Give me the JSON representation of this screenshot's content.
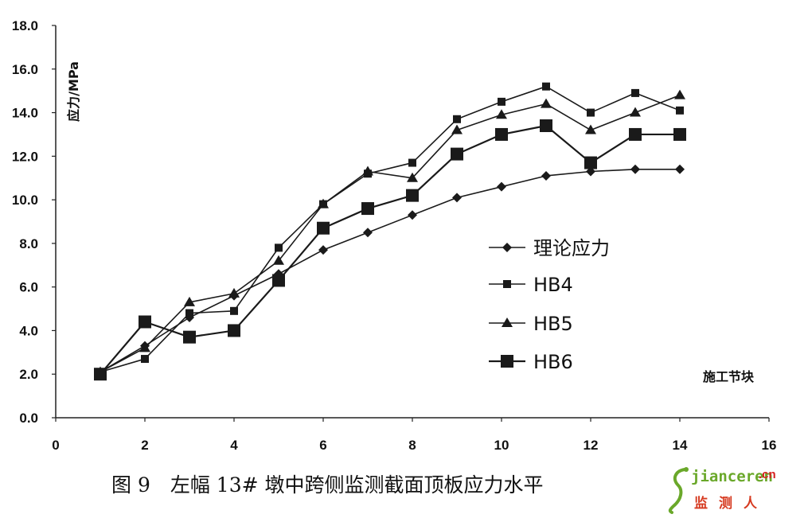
{
  "chart_data": {
    "type": "line",
    "xlim": [
      0,
      16
    ],
    "ylim": [
      0,
      18
    ],
    "x_ticks": [
      "0",
      "2",
      "4",
      "6",
      "8",
      "10",
      "12",
      "14",
      "16"
    ],
    "y_ticks": [
      "0.0",
      "2.0",
      "4.0",
      "6.0",
      "8.0",
      "10.0",
      "12.0",
      "14.0",
      "16.0",
      "18.0"
    ],
    "ylabel": "应力/MPa",
    "xlabel": "施工节块",
    "legend_position": "right",
    "x": [
      1,
      2,
      3,
      4,
      5,
      6,
      7,
      8,
      9,
      10,
      11,
      12,
      13,
      14
    ],
    "series": [
      {
        "name": "理论应力",
        "marker": "diamond",
        "values": [
          2.1,
          3.3,
          4.6,
          5.6,
          6.6,
          7.7,
          8.5,
          9.3,
          10.1,
          10.6,
          11.1,
          11.3,
          11.4,
          11.4
        ]
      },
      {
        "name": "HB4",
        "marker": "small-square",
        "values": [
          2.1,
          2.7,
          4.8,
          4.9,
          7.8,
          9.8,
          11.2,
          11.7,
          13.7,
          14.5,
          15.2,
          14.0,
          14.9,
          14.1
        ]
      },
      {
        "name": "HB5",
        "marker": "triangle",
        "values": [
          2.1,
          3.2,
          5.3,
          5.7,
          7.2,
          9.8,
          11.3,
          11.0,
          13.2,
          13.9,
          14.4,
          13.2,
          14.0,
          14.8
        ]
      },
      {
        "name": "HB6",
        "marker": "large-square",
        "values": [
          2.0,
          4.4,
          3.7,
          4.0,
          6.3,
          8.7,
          9.6,
          10.2,
          12.1,
          13.0,
          13.4,
          11.7,
          13.0,
          13.0
        ]
      }
    ]
  },
  "caption": "图 9　左幅 13# 墩中跨侧监测截面顶板应力水平",
  "watermark": {
    "main": "jianceren",
    "domain": ".cn",
    "sub": "监测人"
  },
  "colors": {
    "line": "#1a1a1a",
    "watermark_green": "#6aa82a",
    "watermark_red": "#d62020"
  }
}
